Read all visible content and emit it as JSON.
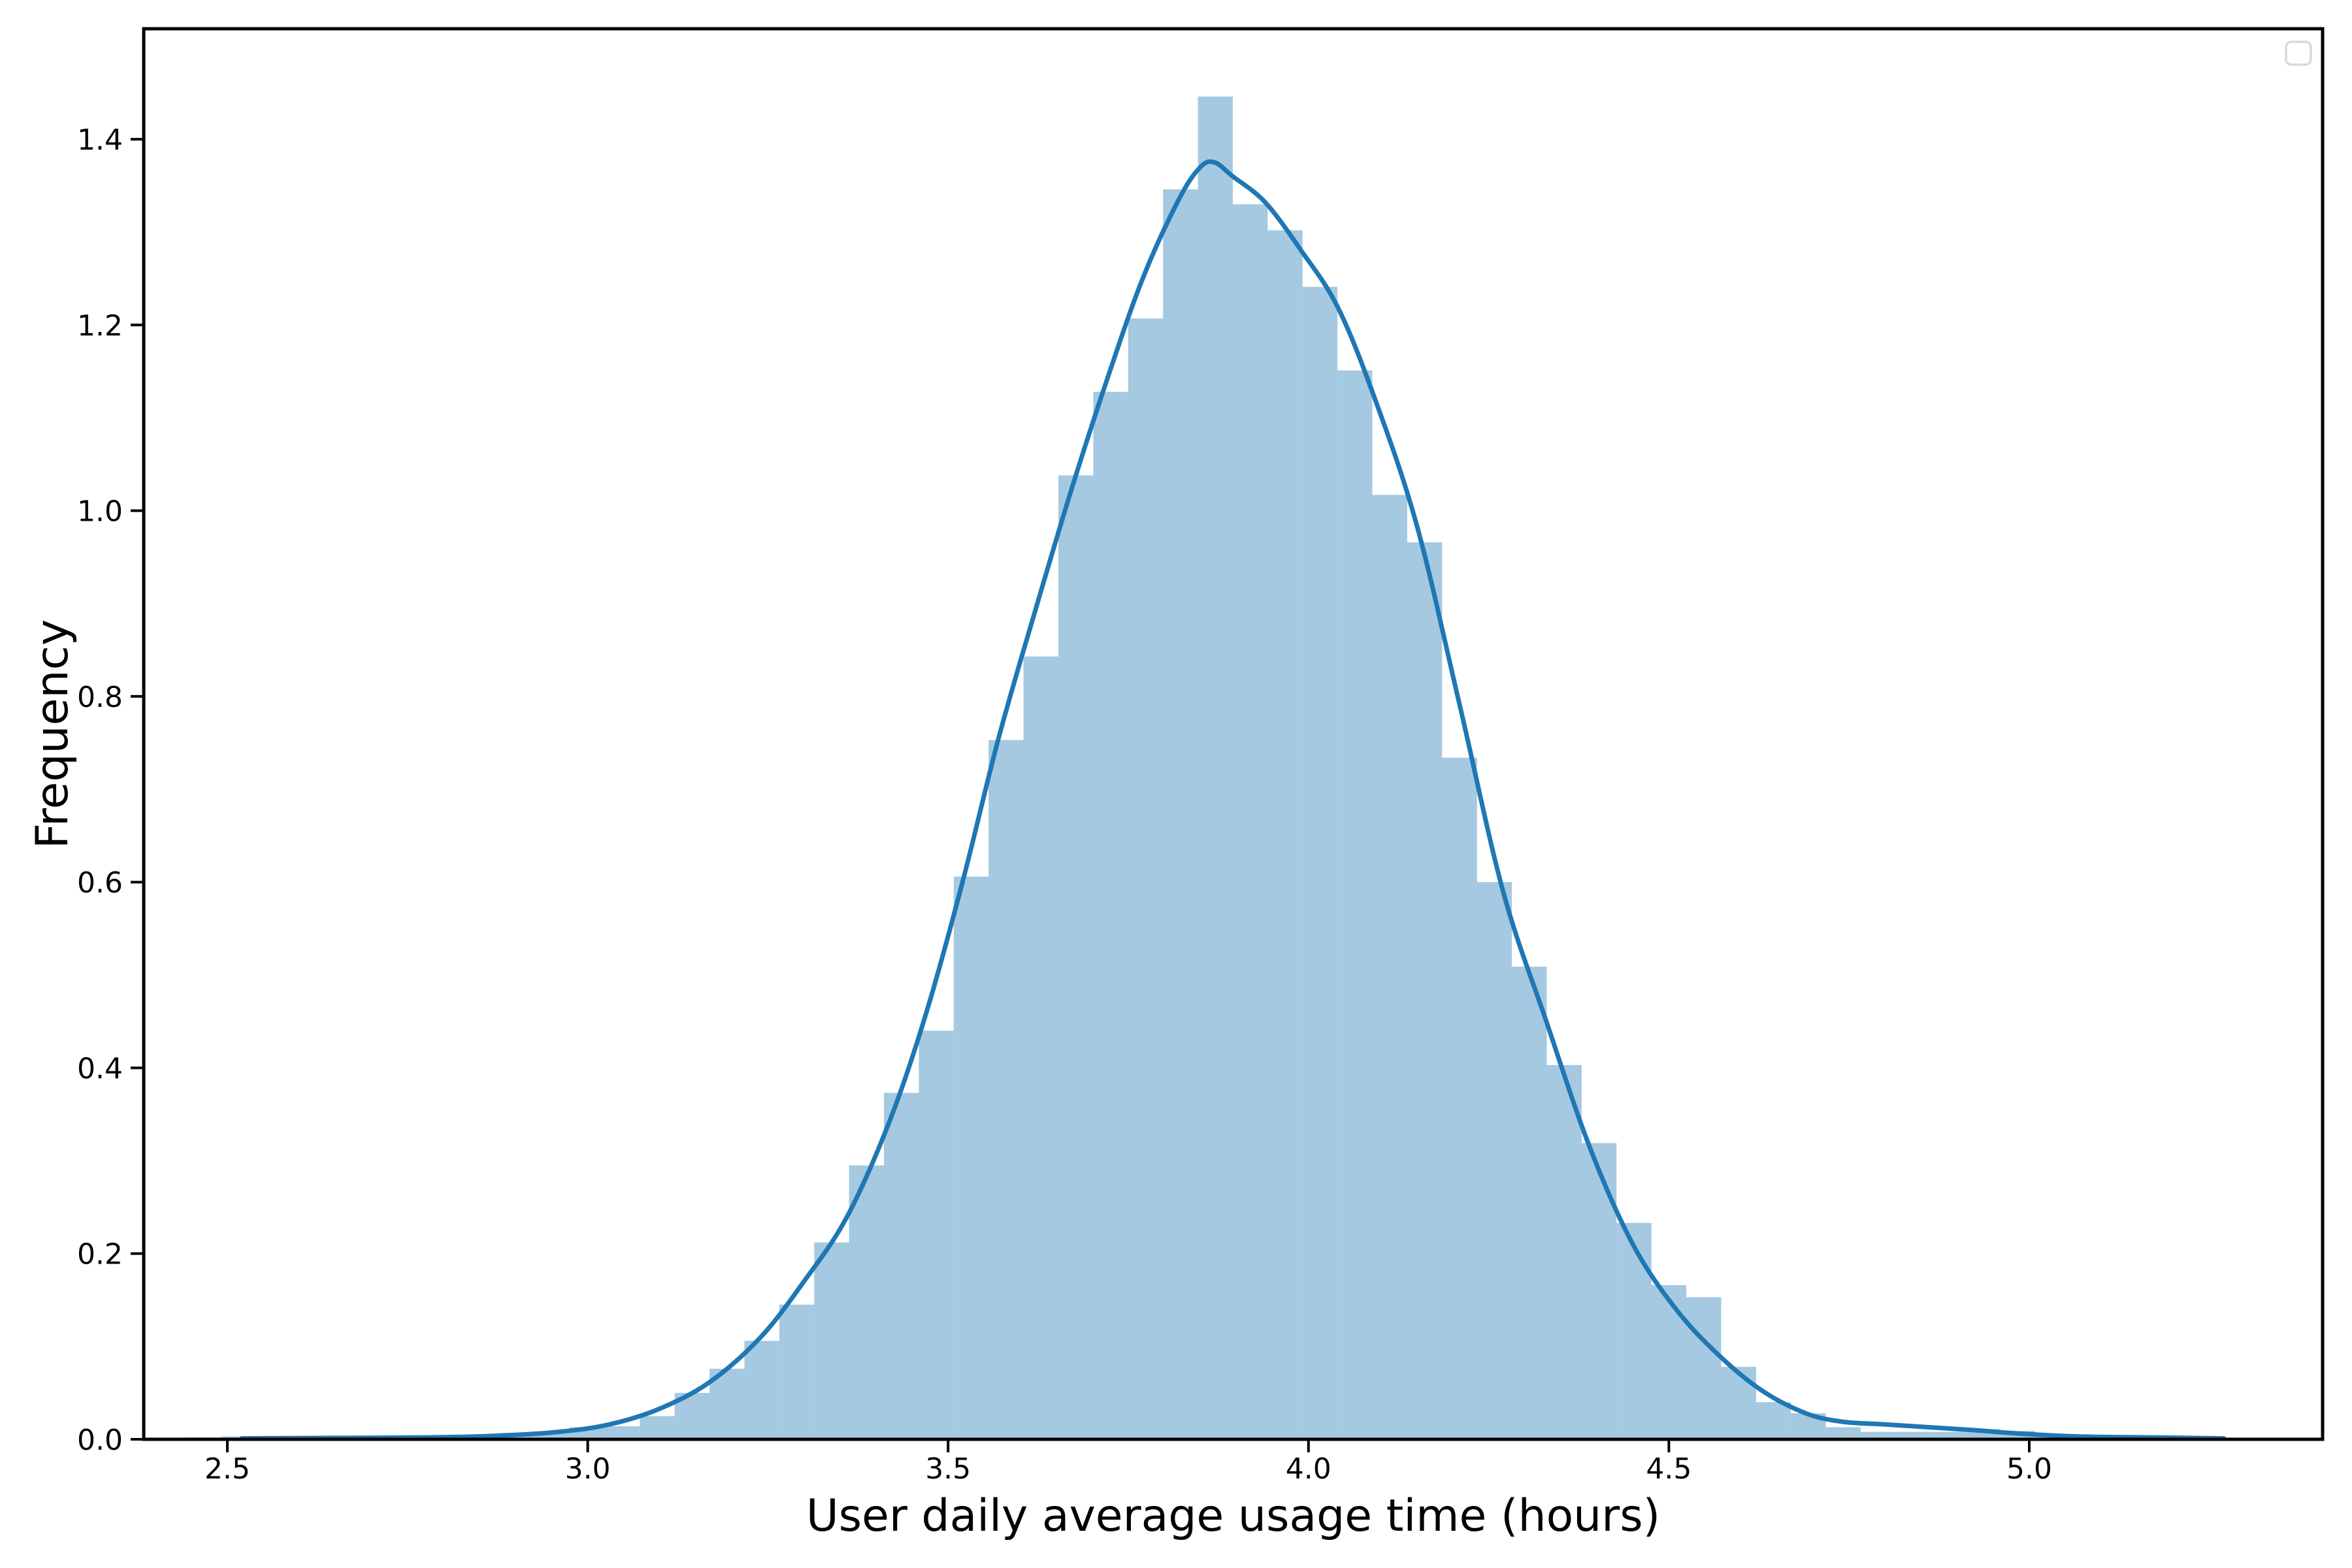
{
  "chart_data": {
    "type": "histogram",
    "title": "",
    "xlabel": "User daily average usage time (hours)",
    "ylabel": "Frequency",
    "xlim": [
      2.384,
      5.407
    ],
    "ylim": [
      0,
      1.519
    ],
    "xticks": [
      "2.5",
      "3.0",
      "3.5",
      "4.0",
      "4.5",
      "5.0"
    ],
    "yticks": [
      "0.0",
      "0.2",
      "0.4",
      "0.6",
      "0.8",
      "1.0",
      "1.2",
      "1.4"
    ],
    "grid": false,
    "legend": {
      "visible": true,
      "entries": []
    },
    "colors": {
      "bar_fill": "#1f77b4",
      "bar_opacity": 0.4,
      "kde_line": "#1f77b4",
      "axis": "#000000",
      "legend_border": "#d9d9d9"
    },
    "histogram": {
      "bin_start": 2.443,
      "bin_width": 0.0484,
      "heights": [
        0.002,
        0.003,
        0.002,
        0.003,
        0.002,
        0.004,
        0.003,
        0.004,
        0.005,
        0.007,
        0.008,
        0.013,
        0.014,
        0.025,
        0.05,
        0.076,
        0.106,
        0.145,
        0.212,
        0.295,
        0.373,
        0.44,
        0.606,
        0.753,
        0.843,
        1.038,
        1.128,
        1.207,
        1.346,
        1.446,
        1.33,
        1.302,
        1.241,
        1.151,
        1.017,
        0.966,
        0.734,
        0.6,
        0.509,
        0.403,
        0.319,
        0.233,
        0.166,
        0.153,
        0.078,
        0.04,
        0.028,
        0.013,
        0.008,
        0.008,
        0.008,
        0.011,
        0.009,
        0.004,
        0.003,
        0.002,
        0.002,
        0.002,
        0.001
      ]
    },
    "kde_points": [
      [
        2.52,
        0.001
      ],
      [
        2.65,
        0.0015
      ],
      [
        2.78,
        0.002
      ],
      [
        2.88,
        0.004
      ],
      [
        2.96,
        0.008
      ],
      [
        3.03,
        0.016
      ],
      [
        3.1,
        0.033
      ],
      [
        3.17,
        0.062
      ],
      [
        3.24,
        0.11
      ],
      [
        3.3,
        0.17
      ],
      [
        3.36,
        0.24
      ],
      [
        3.42,
        0.345
      ],
      [
        3.47,
        0.46
      ],
      [
        3.52,
        0.6
      ],
      [
        3.57,
        0.755
      ],
      [
        3.62,
        0.89
      ],
      [
        3.67,
        1.02
      ],
      [
        3.72,
        1.14
      ],
      [
        3.77,
        1.25
      ],
      [
        3.82,
        1.335
      ],
      [
        3.85,
        1.37
      ],
      [
        3.87,
        1.375
      ],
      [
        3.895,
        1.36
      ],
      [
        3.94,
        1.332
      ],
      [
        3.99,
        1.28
      ],
      [
        4.04,
        1.22
      ],
      [
        4.09,
        1.125
      ],
      [
        4.15,
        0.985
      ],
      [
        4.21,
        0.79
      ],
      [
        4.27,
        0.59
      ],
      [
        4.33,
        0.45
      ],
      [
        4.39,
        0.315
      ],
      [
        4.45,
        0.21
      ],
      [
        4.51,
        0.14
      ],
      [
        4.57,
        0.09
      ],
      [
        4.63,
        0.052
      ],
      [
        4.69,
        0.028
      ],
      [
        4.74,
        0.019
      ],
      [
        4.8,
        0.016
      ],
      [
        4.86,
        0.013
      ],
      [
        4.92,
        0.01
      ],
      [
        4.99,
        0.006
      ],
      [
        5.07,
        0.003
      ],
      [
        5.17,
        0.002
      ],
      [
        5.27,
        0.001
      ]
    ]
  }
}
